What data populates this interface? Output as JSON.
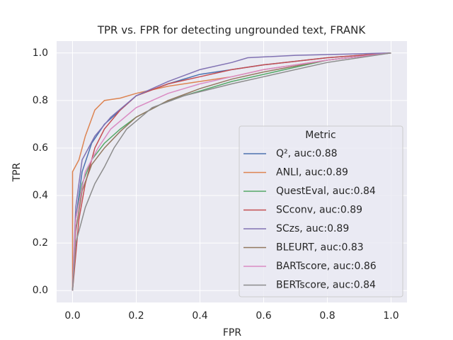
{
  "chart_data": {
    "type": "line",
    "title": "TPR vs. FPR for detecting ungrounded text, FRANK",
    "xlabel": "FPR",
    "ylabel": "TPR",
    "xlim": [
      -0.05,
      1.05
    ],
    "ylim": [
      -0.05,
      1.05
    ],
    "xticks": [
      {
        "value": 0,
        "label": "0.0"
      },
      {
        "value": 0.2,
        "label": "0.2"
      },
      {
        "value": 0.4,
        "label": "0.4"
      },
      {
        "value": 0.6,
        "label": "0.6"
      },
      {
        "value": 0.8,
        "label": "0.8"
      },
      {
        "value": 1,
        "label": "1.0"
      }
    ],
    "yticks": [
      {
        "value": 0,
        "label": "0.0"
      },
      {
        "value": 0.2,
        "label": "0.2"
      },
      {
        "value": 0.4,
        "label": "0.4"
      },
      {
        "value": 0.6,
        "label": "0.6"
      },
      {
        "value": 0.8,
        "label": "0.8"
      },
      {
        "value": 1,
        "label": "1.0"
      }
    ],
    "grid": true,
    "legend_title": "Metric",
    "legend_position": "lower right",
    "series": [
      {
        "name": "Q², auc:0.88",
        "color": "#4c72b0",
        "x": [
          0,
          0.01,
          0.03,
          0.06,
          0.1,
          0.15,
          0.2,
          0.3,
          0.4,
          0.5,
          0.6,
          0.8,
          1
        ],
        "values": [
          0,
          0.3,
          0.5,
          0.62,
          0.7,
          0.76,
          0.82,
          0.87,
          0.91,
          0.93,
          0.95,
          0.98,
          1
        ]
      },
      {
        "name": "ANLI, auc:0.89",
        "color": "#dd8452",
        "x": [
          0,
          0,
          0.02,
          0.04,
          0.07,
          0.1,
          0.15,
          0.2,
          0.3,
          0.4,
          0.5,
          0.6,
          0.8,
          1
        ],
        "values": [
          0,
          0.5,
          0.55,
          0.65,
          0.76,
          0.8,
          0.81,
          0.83,
          0.86,
          0.88,
          0.9,
          0.93,
          0.97,
          1
        ]
      },
      {
        "name": "QuestEval, auc:0.84",
        "color": "#55a868",
        "x": [
          0,
          0.01,
          0.03,
          0.06,
          0.1,
          0.15,
          0.2,
          0.3,
          0.4,
          0.5,
          0.6,
          0.7,
          0.8,
          1
        ],
        "values": [
          0,
          0.3,
          0.45,
          0.55,
          0.62,
          0.68,
          0.73,
          0.8,
          0.84,
          0.88,
          0.91,
          0.94,
          0.97,
          1
        ]
      },
      {
        "name": "SCconv, auc:0.89",
        "color": "#c44e52",
        "x": [
          0,
          0.02,
          0.04,
          0.07,
          0.1,
          0.15,
          0.2,
          0.3,
          0.4,
          0.5,
          0.6,
          0.8,
          1
        ],
        "values": [
          0,
          0.3,
          0.45,
          0.6,
          0.68,
          0.76,
          0.82,
          0.87,
          0.9,
          0.93,
          0.95,
          0.98,
          1
        ]
      },
      {
        "name": "SCzs, auc:0.89",
        "color": "#8172b3",
        "x": [
          0,
          0.01,
          0.03,
          0.07,
          0.12,
          0.2,
          0.3,
          0.4,
          0.5,
          0.55,
          0.7,
          1
        ],
        "values": [
          0,
          0.35,
          0.55,
          0.65,
          0.73,
          0.82,
          0.88,
          0.93,
          0.96,
          0.98,
          0.99,
          1
        ]
      },
      {
        "name": "BLEURT, auc:0.83",
        "color": "#937860",
        "x": [
          0,
          0.01,
          0.03,
          0.06,
          0.1,
          0.15,
          0.2,
          0.3,
          0.4,
          0.5,
          0.6,
          0.8,
          1
        ],
        "values": [
          0,
          0.25,
          0.42,
          0.53,
          0.6,
          0.67,
          0.73,
          0.8,
          0.85,
          0.89,
          0.92,
          0.97,
          1
        ]
      },
      {
        "name": "BARTscore, auc:0.86",
        "color": "#da8bc3",
        "x": [
          0,
          0.01,
          0.04,
          0.08,
          0.12,
          0.2,
          0.3,
          0.4,
          0.5,
          0.6,
          0.8,
          1
        ],
        "values": [
          0,
          0.3,
          0.5,
          0.6,
          0.68,
          0.77,
          0.83,
          0.87,
          0.9,
          0.93,
          0.97,
          1
        ]
      },
      {
        "name": "BERTscore, auc:0.84",
        "color": "#8c8c8c",
        "x": [
          0,
          0.01,
          0.04,
          0.07,
          0.1,
          0.13,
          0.17,
          0.25,
          0.35,
          0.5,
          0.6,
          0.8,
          1
        ],
        "values": [
          0,
          0.2,
          0.35,
          0.45,
          0.52,
          0.6,
          0.68,
          0.77,
          0.82,
          0.87,
          0.9,
          0.96,
          1
        ]
      }
    ]
  }
}
